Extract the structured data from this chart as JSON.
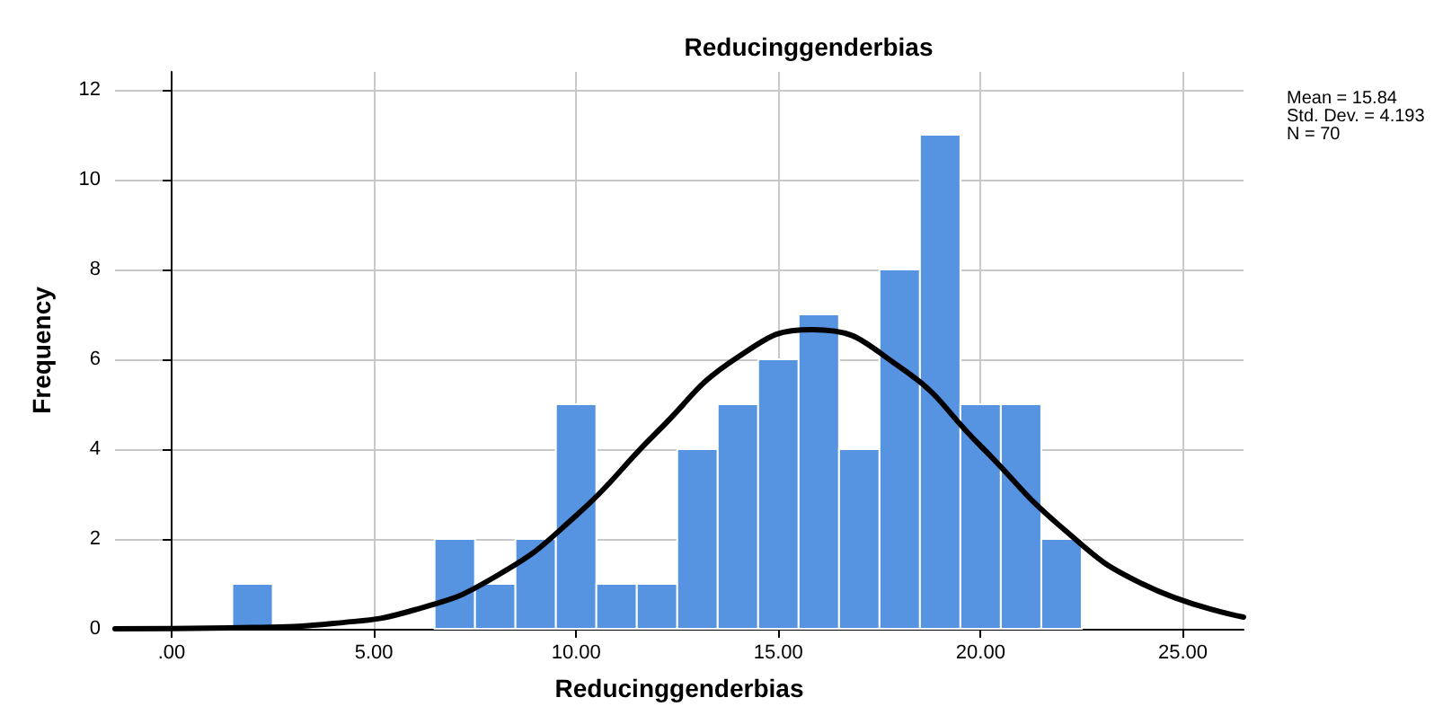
{
  "chart_data": {
    "type": "histogram",
    "title": "Reducinggenderbias",
    "xlabel": "Reducinggenderbias",
    "ylabel": "Frequency",
    "bins": [
      1.5,
      2.5,
      3.5,
      4.5,
      5.5,
      6.5,
      7.5,
      8.5,
      9.5,
      10.5,
      11.5,
      12.5,
      13.5,
      14.5,
      15.5,
      16.5,
      17.5,
      18.5,
      19.5,
      20.5,
      21.5,
      22.5
    ],
    "values": [
      1,
      0,
      0,
      0,
      0,
      2,
      1,
      2,
      5,
      1,
      1,
      4,
      5,
      6,
      7,
      4,
      8,
      11,
      5,
      5,
      2
    ],
    "color": "#5694e2",
    "series": [
      {
        "type": "line",
        "color": "#000000",
        "x": [
          -1.4,
          2,
          4,
          6,
          8,
          10,
          12,
          14,
          15.84,
          18,
          20,
          22,
          24,
          26.5
        ],
        "values": [
          0,
          0.03,
          0.12,
          0.42,
          1.16,
          2.52,
          4.38,
          6.05,
          6.66,
          5.83,
          4.07,
          2.26,
          1.0,
          0.26
        ]
      }
    ],
    "xlim": [
      -1.4,
      26.5
    ],
    "xticks": [
      {
        "value": 0,
        "label": ".00"
      },
      {
        "value": 5,
        "label": "5.00"
      },
      {
        "value": 10,
        "label": "10.00"
      },
      {
        "value": 15,
        "label": "15.00"
      },
      {
        "value": 20,
        "label": "20.00"
      },
      {
        "value": 25,
        "label": "25.00"
      }
    ],
    "ylim": [
      0,
      12.4
    ],
    "yticks": [
      0,
      2,
      4,
      6,
      8,
      10,
      12
    ],
    "grid": true,
    "annotations": [
      "Mean = 15.84",
      "Std. Dev. = 4.193",
      "N = 70"
    ]
  }
}
